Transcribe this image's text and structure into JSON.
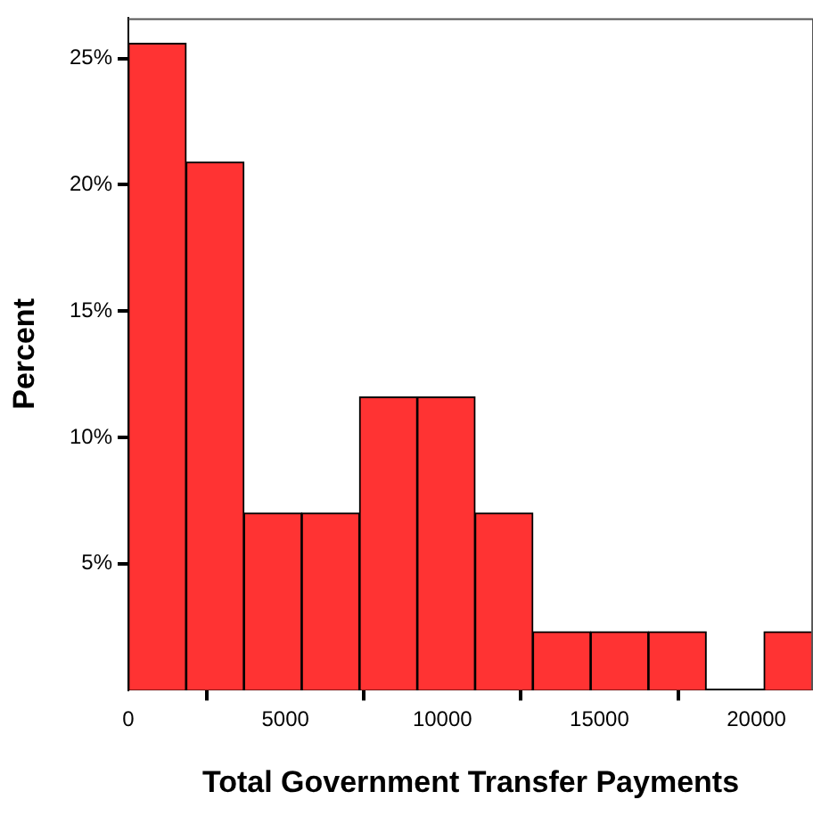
{
  "chart_data": {
    "type": "histogram",
    "xlabel": "Total Government Transfer Payments",
    "ylabel": "Percent",
    "bins": [
      0,
      1840,
      3680,
      5520,
      7360,
      9200,
      11040,
      12880,
      14720,
      16560,
      18400,
      20240,
      22080
    ],
    "values": [
      25.6,
      20.9,
      7.0,
      7.0,
      11.6,
      11.6,
      7.0,
      2.3,
      2.3,
      2.3,
      0,
      2.3
    ],
    "color": "#ff3333",
    "xlim": [
      0,
      21800
    ],
    "xticks": [
      0,
      5000,
      10000,
      15000,
      20000
    ],
    "ylim": [
      0,
      26.6
    ],
    "yticks": [
      {
        "value": 5,
        "label": "5%"
      },
      {
        "value": 10,
        "label": "10%"
      },
      {
        "value": 15,
        "label": "15%"
      },
      {
        "value": 20,
        "label": "20%"
      },
      {
        "value": 25,
        "label": "25%"
      }
    ],
    "grid": false,
    "legend": false
  }
}
